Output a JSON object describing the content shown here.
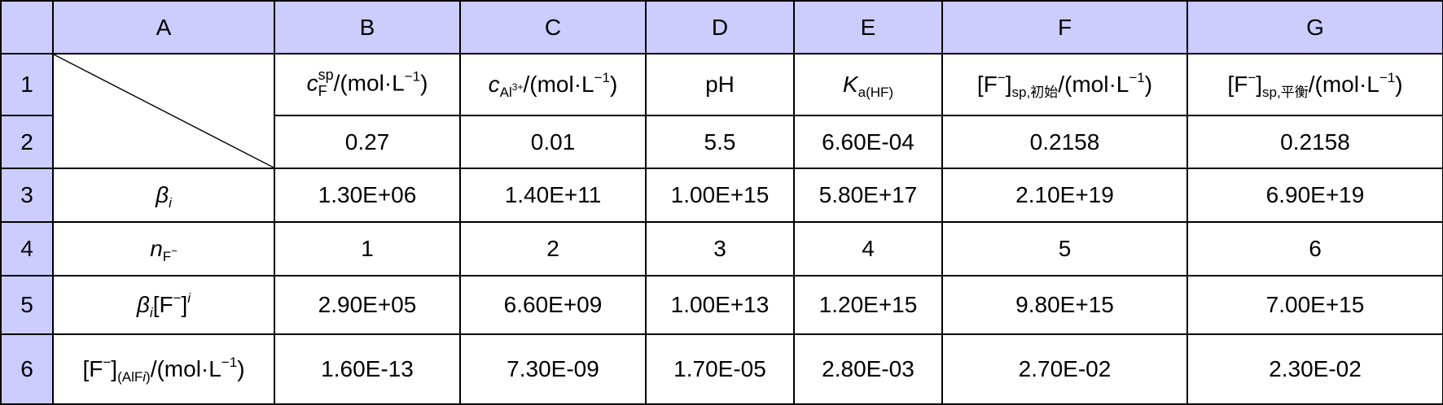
{
  "columns": [
    "A",
    "B",
    "C",
    "D",
    "E",
    "F",
    "G"
  ],
  "rows": [
    "1",
    "2",
    "3",
    "4",
    "5",
    "6"
  ],
  "header": {
    "b": {
      "main": "c",
      "sup": "sp",
      "sub": "F",
      "unit": "/(mol·L",
      "exp": "−1",
      "close": ")"
    },
    "c": {
      "main": "c",
      "sub": "Al",
      "subsup": "3+",
      "unit": "/(mol·L",
      "exp": "−1",
      "close": ")"
    },
    "d": "pH",
    "e": {
      "main": "K",
      "sub": "a(HF)"
    },
    "f": {
      "open": "[F",
      "sup": "−",
      "bracket": "]",
      "sub": "sp,初始",
      "unit": "/(mol·L",
      "exp": "−1",
      "close": ")"
    },
    "g": {
      "open": "[F",
      "sup": "−",
      "bracket": "]",
      "sub": "sp,平衡",
      "unit": "/(mol·L",
      "exp": "−1",
      "close": ")"
    }
  },
  "row2": [
    "0.27",
    "0.01",
    "5.5",
    "6.60E-04",
    "0.2158",
    "0.2158"
  ],
  "labels": {
    "beta": {
      "main": "β",
      "sub": "i"
    },
    "n": {
      "main": "n",
      "sub": "F",
      "sup": "−"
    },
    "betaF": {
      "main": "β",
      "sub": "i",
      "rest": "[F",
      "sup": "−",
      "close": "]",
      "exp": "i"
    },
    "conc": {
      "open": "[F",
      "sup": "−",
      "close": "]",
      "sub_open": "(AlF",
      "sub_i": "i",
      "sub_close": ")",
      "unit": "/(mol·L",
      "exp": "−1",
      "end": ")"
    }
  },
  "row3": [
    "1.30E+06",
    "1.40E+11",
    "1.00E+15",
    "5.80E+17",
    "2.10E+19",
    "6.90E+19"
  ],
  "row4": [
    "1",
    "2",
    "3",
    "4",
    "5",
    "6"
  ],
  "row5": [
    "2.90E+05",
    "6.60E+09",
    "1.00E+13",
    "1.20E+15",
    "9.80E+15",
    "7.00E+15"
  ],
  "row6": [
    "1.60E-13",
    "7.30E-09",
    "1.70E-05",
    "2.80E-03",
    "2.70E-02",
    "2.30E-02"
  ]
}
